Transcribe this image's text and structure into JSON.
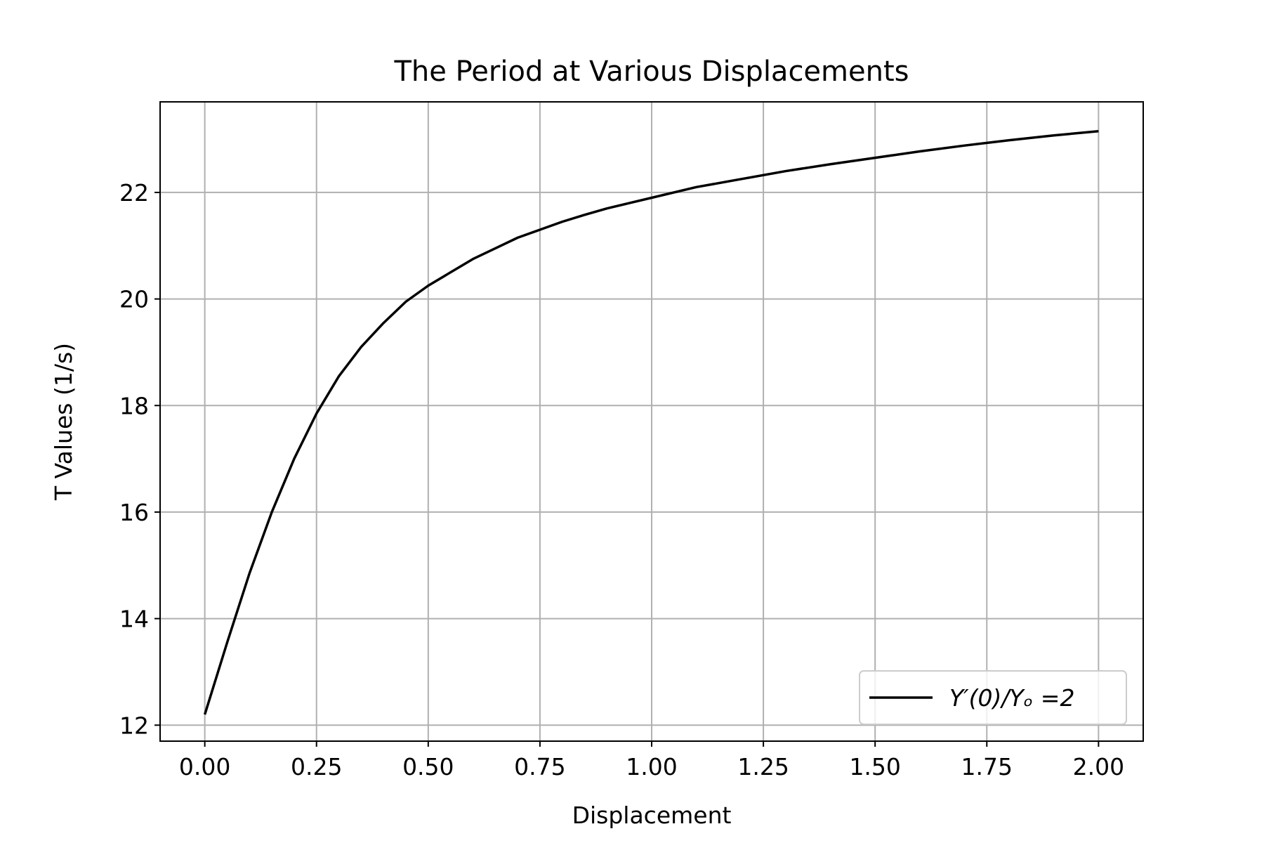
{
  "chart_data": {
    "type": "line",
    "title": "The Period at Various Displacements",
    "xlabel": "Displacement",
    "ylabel": "T Values (1/s)",
    "xlim": [
      -0.1,
      2.1
    ],
    "ylim": [
      11.7,
      23.7
    ],
    "x_ticks": [
      0.0,
      0.25,
      0.5,
      0.75,
      1.0,
      1.25,
      1.5,
      1.75,
      2.0
    ],
    "x_tick_labels": [
      "0.00",
      "0.25",
      "0.50",
      "0.75",
      "1.00",
      "1.25",
      "1.50",
      "1.75",
      "2.00"
    ],
    "y_ticks": [
      12,
      14,
      16,
      18,
      20,
      22
    ],
    "y_tick_labels": [
      "12",
      "14",
      "16",
      "18",
      "20",
      "22"
    ],
    "grid": true,
    "legend_position": "bottom-right",
    "colors": {
      "line": "#000000",
      "grid": "#b0b0b0"
    },
    "series": [
      {
        "name": "Y′(0)/Yₒ =2",
        "x": [
          0.0,
          0.05,
          0.1,
          0.15,
          0.2,
          0.25,
          0.3,
          0.35,
          0.4,
          0.45,
          0.5,
          0.55,
          0.6,
          0.65,
          0.7,
          0.75,
          0.8,
          0.85,
          0.9,
          0.95,
          1.0,
          1.1,
          1.2,
          1.3,
          1.4,
          1.5,
          1.6,
          1.7,
          1.8,
          1.9,
          2.0
        ],
        "y": [
          12.2,
          13.55,
          14.85,
          16.0,
          17.0,
          17.85,
          18.55,
          19.1,
          19.55,
          19.95,
          20.25,
          20.5,
          20.75,
          20.95,
          21.15,
          21.3,
          21.45,
          21.58,
          21.7,
          21.8,
          21.9,
          22.1,
          22.25,
          22.4,
          22.53,
          22.65,
          22.77,
          22.88,
          22.98,
          23.07,
          23.15
        ]
      }
    ]
  }
}
